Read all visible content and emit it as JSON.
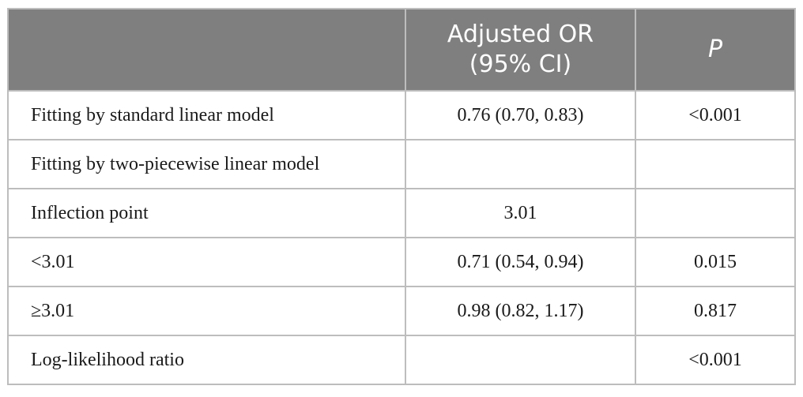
{
  "table": {
    "headers": [
      "",
      "Adjusted OR\n(95% CI)",
      "P"
    ],
    "header_line1": "Adjusted OR",
    "header_line2": "(95% CI)",
    "header_p": "P",
    "rows": [
      {
        "label": "Fitting by standard linear model",
        "or": "0.76 (0.70, 0.83)",
        "p": "<0.001"
      },
      {
        "label": "Fitting by two-piecewise linear model",
        "or": "",
        "p": ""
      },
      {
        "label": "Inflection point",
        "or": "3.01",
        "p": ""
      },
      {
        "label": "<3.01",
        "or": "0.71 (0.54, 0.94)",
        "p": "0.015"
      },
      {
        "label": "≥3.01",
        "or": "0.98 (0.82, 1.17)",
        "p": "0.817"
      },
      {
        "label": "Log-likelihood ratio",
        "or": "",
        "p": "<0.001"
      }
    ]
  }
}
